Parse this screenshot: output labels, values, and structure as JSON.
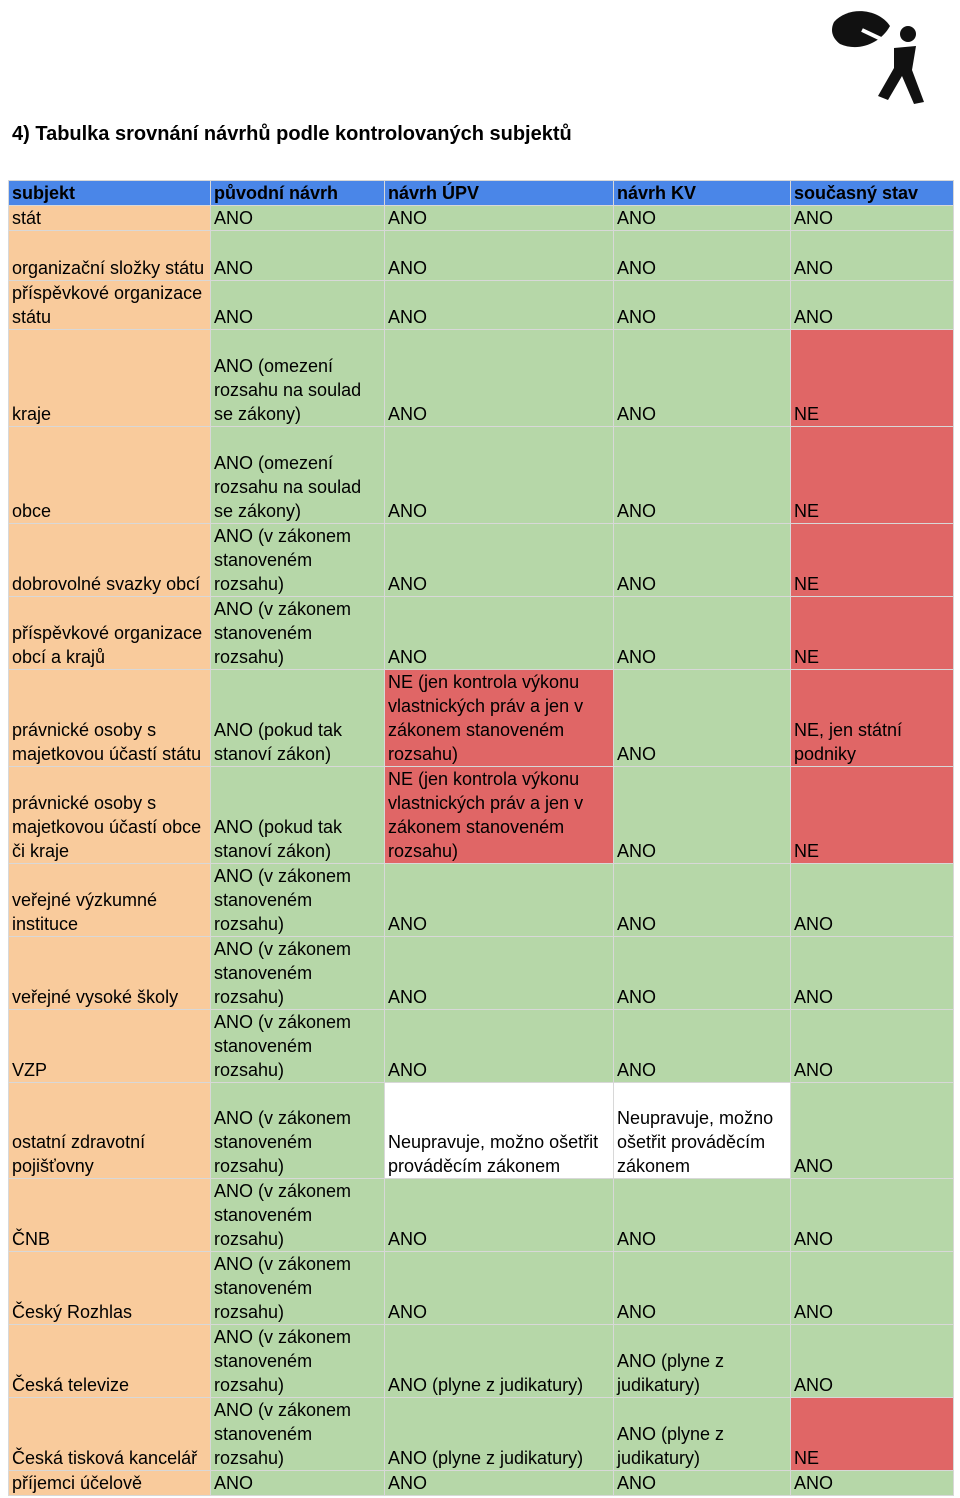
{
  "title": "4) Tabulka srovnání návrhů podle kontrolovaných subjektů",
  "table": {
    "header": [
      "subjekt",
      "původní návrh",
      "návrh ÚPV",
      "návrh KV",
      "současný stav"
    ],
    "rows": [
      [
        "stát",
        "ANO",
        "ANO",
        "ANO",
        "ANO"
      ],
      [
        "organizační složky státu",
        "ANO",
        "ANO",
        "ANO",
        "ANO"
      ],
      [
        "příspěvkové organizace státu",
        "ANO",
        "ANO",
        "ANO",
        "ANO"
      ],
      [
        "kraje",
        "ANO (omezení rozsahu na soulad se zákony)",
        "ANO",
        "ANO",
        "NE"
      ],
      [
        "obce",
        "ANO (omezení rozsahu na soulad se zákony)",
        "ANO",
        "ANO",
        "NE"
      ],
      [
        "dobrovolné svazky obcí",
        "ANO (v zákonem stanoveném rozsahu)",
        "ANO",
        "ANO",
        "NE"
      ],
      [
        "příspěvkové organizace obcí a krajů",
        "ANO (v zákonem stanoveném rozsahu)",
        "ANO",
        "ANO",
        "NE"
      ],
      [
        "právnické osoby s majetkovou účastí státu",
        "ANO (pokud tak stanoví zákon)",
        "NE (jen kontrola výkonu vlastnických práv a jen v zákonem stanoveném rozsahu)",
        "ANO",
        "NE, jen státní podniky"
      ],
      [
        "právnické osoby s majetkovou účastí obce či kraje",
        "ANO (pokud tak stanoví zákon)",
        "NE (jen kontrola výkonu vlastnických práv a jen v zákonem stanoveném rozsahu)",
        "ANO",
        "NE"
      ],
      [
        "veřejné výzkumné instituce",
        "ANO (v zákonem stanoveném rozsahu)",
        "ANO",
        "ANO",
        "ANO"
      ],
      [
        "veřejné vysoké školy",
        "ANO (v zákonem stanoveném rozsahu)",
        "ANO",
        "ANO",
        "ANO"
      ],
      [
        "VZP",
        "ANO (v zákonem stanoveném rozsahu)",
        "ANO",
        "ANO",
        "ANO"
      ],
      [
        "ostatní zdravotní pojišťovny",
        "ANO (v zákonem stanoveném rozsahu)",
        "Neupravuje, možno ošetřit prováděcím zákonem",
        "Neupravuje, možno ošetřit prováděcím zákonem",
        "ANO"
      ],
      [
        "ČNB",
        "ANO (v zákonem stanoveném rozsahu)",
        "ANO",
        "ANO",
        "ANO"
      ],
      [
        "Český Rozhlas",
        "ANO (v zákonem stanoveném rozsahu)",
        "ANO",
        "ANO",
        "ANO"
      ],
      [
        "Česká televize",
        "ANO (v zákonem stanoveném rozsahu)",
        "ANO (plyne z judikatury)",
        "ANO (plyne z judikatury)",
        "ANO"
      ],
      [
        "Česká tisková kancelář",
        "ANO (v zákonem stanoveném rozsahu)",
        "ANO (plyne z judikatury)",
        "ANO (plyne z judikatury)",
        "NE"
      ],
      [
        "příjemci účelově",
        "ANO",
        "ANO",
        "ANO",
        "ANO"
      ]
    ]
  }
}
